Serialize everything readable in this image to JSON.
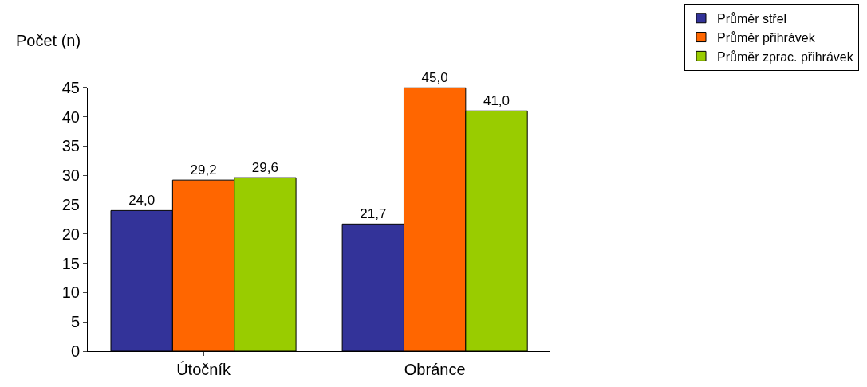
{
  "chart_data": {
    "type": "bar",
    "ylabel": "Počet (n)",
    "categories": [
      "Útočník",
      "Obránce"
    ],
    "series": [
      {
        "name": "Průměr střel",
        "color": "#333399",
        "values": [
          24.0,
          21.7
        ],
        "value_labels": [
          "24,0",
          "21,7"
        ]
      },
      {
        "name": "Průměr přihrávek",
        "color": "#ff6600",
        "values": [
          29.2,
          45.0
        ],
        "value_labels": [
          "29,2",
          "45,0"
        ]
      },
      {
        "name": "Průměr zprac. přihrávek",
        "color": "#99cc00",
        "values": [
          29.6,
          41.0
        ],
        "value_labels": [
          "29,6",
          "41,0"
        ]
      }
    ],
    "ylim": [
      0,
      45
    ],
    "yticks": [
      0,
      5,
      10,
      15,
      20,
      25,
      30,
      35,
      40,
      45
    ],
    "grid": false,
    "legend": "top right"
  }
}
